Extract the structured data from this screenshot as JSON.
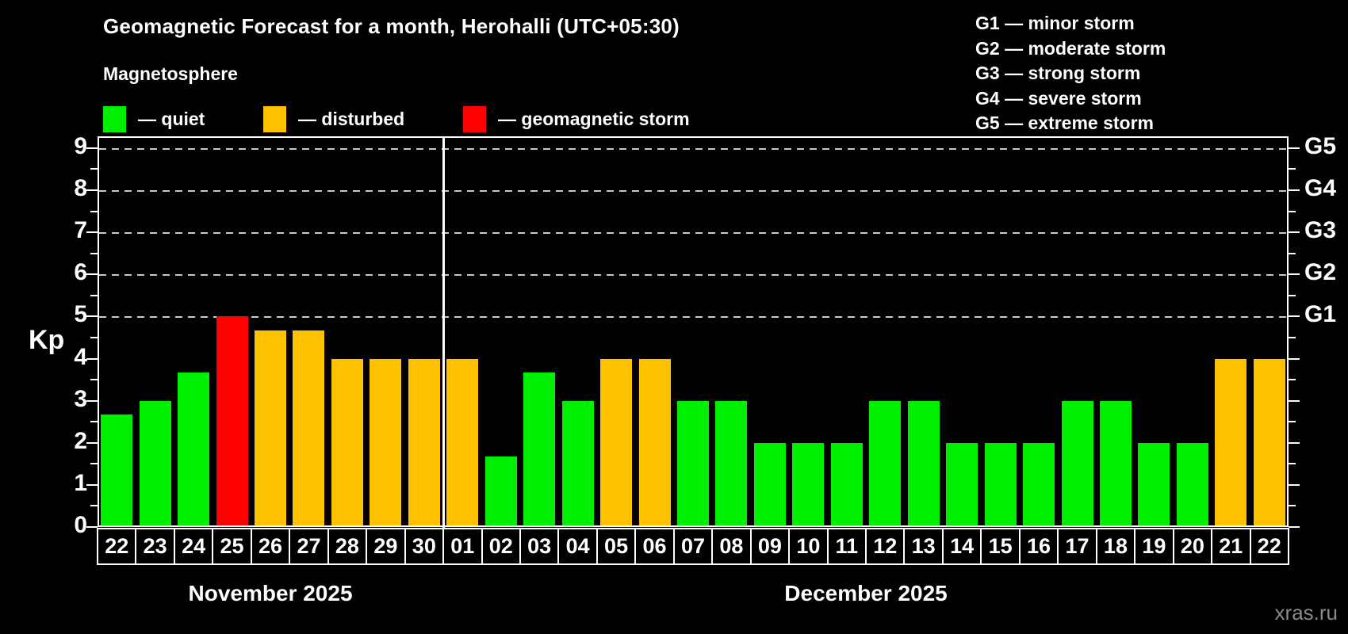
{
  "title": "Geomagnetic Forecast for a month, Herohalli (UTC+05:30)",
  "subtitle": "Magnetosphere",
  "legend": {
    "items": [
      {
        "name": "quiet",
        "label": "— quiet",
        "color": "#00ee00"
      },
      {
        "name": "disturbed",
        "label": "— disturbed",
        "color": "#ffc000"
      },
      {
        "name": "storm",
        "label": "— geomagnetic storm",
        "color": "#ff0000"
      }
    ]
  },
  "g_legend": [
    "G1 — minor storm",
    "G2 — moderate storm",
    "G3 — strong storm",
    "G4 — severe storm",
    "G5 — extreme storm"
  ],
  "watermark": "xras.ru",
  "chart_data": {
    "type": "bar",
    "ylabel": "Kp",
    "ylim": [
      0,
      9.28
    ],
    "yticks": [
      0,
      1,
      2,
      3,
      4,
      5,
      6,
      7,
      8,
      9
    ],
    "gridlines_at": [
      5,
      6,
      7,
      8,
      9
    ],
    "grid_style": "dashed",
    "legend_position": "top",
    "right_axis_labels": [
      {
        "value": 5,
        "label": "G1"
      },
      {
        "value": 6,
        "label": "G2"
      },
      {
        "value": 7,
        "label": "G3"
      },
      {
        "value": 8,
        "label": "G4"
      },
      {
        "value": 9,
        "label": "G5"
      }
    ],
    "status_colors": {
      "quiet": "#00ee00",
      "disturbed": "#ffc000",
      "storm": "#ff0000"
    },
    "months": [
      {
        "label": "November 2025",
        "days": 9
      },
      {
        "label": "December 2025",
        "days": 22
      }
    ],
    "categories": [
      "22",
      "23",
      "24",
      "25",
      "26",
      "27",
      "28",
      "29",
      "30",
      "01",
      "02",
      "03",
      "04",
      "05",
      "06",
      "07",
      "08",
      "09",
      "10",
      "11",
      "12",
      "13",
      "14",
      "15",
      "16",
      "17",
      "18",
      "19",
      "20",
      "21",
      "22"
    ],
    "values": [
      2.67,
      3,
      3.67,
      5,
      4.67,
      4.67,
      4,
      4,
      4,
      4,
      1.67,
      3.67,
      3,
      4,
      4,
      3,
      3,
      2,
      2,
      2,
      3,
      3,
      2,
      2,
      2,
      3,
      3,
      2,
      2,
      4,
      4
    ],
    "statuses": [
      "quiet",
      "quiet",
      "quiet",
      "storm",
      "disturbed",
      "disturbed",
      "disturbed",
      "disturbed",
      "disturbed",
      "disturbed",
      "quiet",
      "quiet",
      "quiet",
      "disturbed",
      "disturbed",
      "quiet",
      "quiet",
      "quiet",
      "quiet",
      "quiet",
      "quiet",
      "quiet",
      "quiet",
      "quiet",
      "quiet",
      "quiet",
      "quiet",
      "quiet",
      "quiet",
      "disturbed",
      "disturbed"
    ]
  }
}
